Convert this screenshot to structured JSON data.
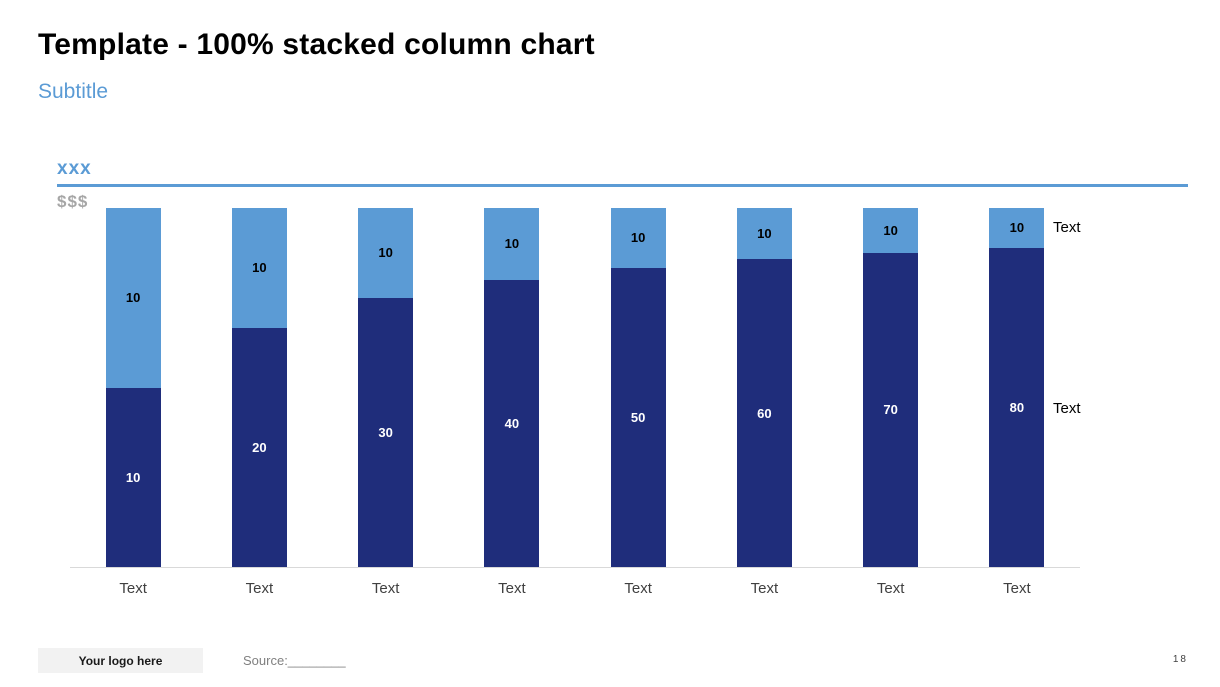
{
  "slide": {
    "title": "Template - 100% stacked column chart",
    "subtitle": "Subtitle"
  },
  "chart": {
    "axis_title": "xxx",
    "axis_units": "$$$"
  },
  "chart_data": {
    "type": "bar",
    "subtype": "100-percent-stacked-column",
    "categories": [
      "Text",
      "Text",
      "Text",
      "Text",
      "Text",
      "Text",
      "Text",
      "Text"
    ],
    "series": [
      {
        "name": "Text",
        "color": "#1f2d7b",
        "label_color": "#ffffff",
        "values": [
          10,
          20,
          30,
          40,
          50,
          60,
          70,
          80
        ]
      },
      {
        "name": "Text",
        "color": "#5b9bd5",
        "label_color": "#000000",
        "values": [
          10,
          10,
          10,
          10,
          10,
          10,
          10,
          10
        ]
      }
    ],
    "stacking": "percent",
    "ylim": [
      0,
      100
    ],
    "grid": false,
    "legend_position": "right-of-last-column"
  },
  "footer": {
    "logo_text": "Your logo here",
    "source_text": "Source:________",
    "page_number": "18"
  },
  "colors": {
    "accent_blue": "#5b9bd5",
    "dark_blue": "#1f2d7b",
    "units_gray": "#a6a6a6",
    "baseline_gray": "#d9d9d9"
  }
}
